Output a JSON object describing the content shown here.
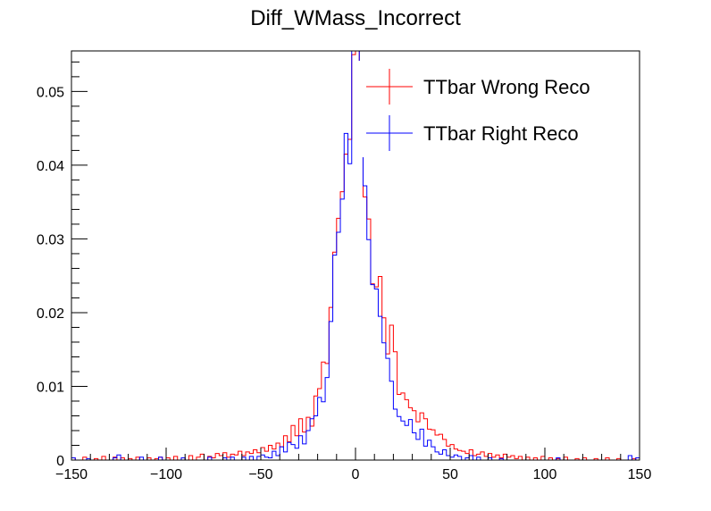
{
  "chart_data": {
    "type": "histogram-step",
    "title": "Diff_WMass_Incorrect",
    "xlabel": "",
    "ylabel": "",
    "xlim": [
      -150,
      150
    ],
    "ylim": [
      0,
      0.0555
    ],
    "x_ticks": [
      -150,
      -100,
      -50,
      0,
      50,
      100,
      150
    ],
    "x_tick_labels": [
      "−150",
      "−100",
      "−50",
      "0",
      "50",
      "100",
      "150"
    ],
    "y_ticks": [
      0,
      0.01,
      0.02,
      0.03,
      0.04,
      0.05
    ],
    "y_tick_labels": [
      "0",
      "0.01",
      "0.02",
      "0.03",
      "0.04",
      "0.05"
    ],
    "bin_width": 2,
    "legend_position": "top-right",
    "series": [
      {
        "name": "TTbar Wrong Reco",
        "color": "#ff0000",
        "bins": [
          [
            -150,
            0.0003
          ],
          [
            -148,
            0
          ],
          [
            -146,
            0
          ],
          [
            -144,
            0.0004
          ],
          [
            -142,
            0
          ],
          [
            -140,
            0
          ],
          [
            -138,
            0.0002
          ],
          [
            -136,
            0
          ],
          [
            -134,
            0.0005
          ],
          [
            -132,
            0
          ],
          [
            -130,
            0
          ],
          [
            -128,
            0.0004
          ],
          [
            -126,
            0
          ],
          [
            -124,
            0.0003
          ],
          [
            -122,
            0
          ],
          [
            -120,
            0.0002
          ],
          [
            -118,
            0
          ],
          [
            -116,
            0.0004
          ],
          [
            -114,
            0
          ],
          [
            -112,
            0
          ],
          [
            -110,
            0.0003
          ],
          [
            -108,
            0
          ],
          [
            -106,
            0.0002
          ],
          [
            -104,
            0.0004
          ],
          [
            -102,
            0
          ],
          [
            -100,
            0.0003
          ],
          [
            -98,
            0
          ],
          [
            -96,
            0.0005
          ],
          [
            -94,
            0
          ],
          [
            -92,
            0.0003
          ],
          [
            -90,
            0
          ],
          [
            -88,
            0.0006
          ],
          [
            -86,
            0
          ],
          [
            -84,
            0.0004
          ],
          [
            -82,
            0.0008
          ],
          [
            -80,
            0
          ],
          [
            -78,
            0.0005
          ],
          [
            -76,
            0.0003
          ],
          [
            -74,
            0.0009
          ],
          [
            -72,
            0.0006
          ],
          [
            -70,
            0.001
          ],
          [
            -68,
            0.0004
          ],
          [
            -66,
            0.0008
          ],
          [
            -64,
            0.0007
          ],
          [
            -62,
            0.0012
          ],
          [
            -60,
            0.0006
          ],
          [
            -58,
            0.0011
          ],
          [
            -56,
            0.0009
          ],
          [
            -54,
            0.0014
          ],
          [
            -52,
            0.001
          ],
          [
            -50,
            0.0017
          ],
          [
            -48,
            0.0012
          ],
          [
            -46,
            0.002
          ],
          [
            -44,
            0.0015
          ],
          [
            -42,
            0.0023
          ],
          [
            -40,
            0.0018
          ],
          [
            -38,
            0.0033
          ],
          [
            -36,
            0.0025
          ],
          [
            -34,
            0.0047
          ],
          [
            -32,
            0.0033
          ],
          [
            -30,
            0.0056
          ],
          [
            -28,
            0.0038
          ],
          [
            -26,
            0.0058
          ],
          [
            -24,
            0.0046
          ],
          [
            -22,
            0.0087
          ],
          [
            -20,
            0.0097
          ],
          [
            -18,
            0.0133
          ],
          [
            -16,
            0.0131
          ],
          [
            -14,
            0.0207
          ],
          [
            -12,
            0.0282
          ],
          [
            -10,
            0.0328
          ],
          [
            -8,
            0.0364
          ],
          [
            -6,
            0.0415
          ],
          [
            -4,
            0.0435
          ],
          [
            -2,
            0.055
          ],
          [
            0,
            0.0555
          ],
          [
            2,
            0.0488
          ],
          [
            4,
            0.0357
          ],
          [
            6,
            0.0327
          ],
          [
            8,
            0.0239
          ],
          [
            10,
            0.0235
          ],
          [
            12,
            0.0249
          ],
          [
            14,
            0.0193
          ],
          [
            16,
            0.0144
          ],
          [
            18,
            0.0183
          ],
          [
            20,
            0.0147
          ],
          [
            22,
            0.0089
          ],
          [
            24,
            0.0091
          ],
          [
            26,
            0.0082
          ],
          [
            28,
            0.0071
          ],
          [
            30,
            0.0067
          ],
          [
            32,
            0.0052
          ],
          [
            34,
            0.0064
          ],
          [
            36,
            0.0056
          ],
          [
            38,
            0.0042
          ],
          [
            40,
            0.0041
          ],
          [
            42,
            0.0034
          ],
          [
            44,
            0.0035
          ],
          [
            46,
            0.0028
          ],
          [
            48,
            0.0019
          ],
          [
            50,
            0.0021
          ],
          [
            52,
            0.0015
          ],
          [
            54,
            0.0013
          ],
          [
            56,
            0.0012
          ],
          [
            58,
            0.0009
          ],
          [
            60,
            0.0014
          ],
          [
            62,
            0.0006
          ],
          [
            64,
            0.0008
          ],
          [
            66,
            0.0011
          ],
          [
            68,
            0.0005
          ],
          [
            70,
            0.0009
          ],
          [
            72,
            0.0004
          ],
          [
            74,
            0.0007
          ],
          [
            76,
            0.0003
          ],
          [
            78,
            0.0008
          ],
          [
            80,
            0.0004
          ],
          [
            82,
            0.0006
          ],
          [
            84,
            0.0002
          ],
          [
            86,
            0.0005
          ],
          [
            88,
            0
          ],
          [
            90,
            0.0004
          ],
          [
            92,
            0
          ],
          [
            94,
            0.0003
          ],
          [
            96,
            0
          ],
          [
            98,
            0.0005
          ],
          [
            100,
            0
          ],
          [
            102,
            0.0003
          ],
          [
            104,
            0
          ],
          [
            106,
            0.0002
          ],
          [
            108,
            0
          ],
          [
            110,
            0.0004
          ],
          [
            112,
            0
          ],
          [
            114,
            0
          ],
          [
            116,
            0.0002
          ],
          [
            118,
            0
          ],
          [
            120,
            0.0003
          ],
          [
            122,
            0
          ],
          [
            124,
            0
          ],
          [
            126,
            0.0002
          ],
          [
            128,
            0
          ],
          [
            130,
            0
          ],
          [
            132,
            0.0003
          ],
          [
            134,
            0
          ],
          [
            136,
            0
          ],
          [
            138,
            0.0002
          ],
          [
            140,
            0
          ],
          [
            142,
            0
          ],
          [
            144,
            0
          ],
          [
            146,
            0.0002
          ],
          [
            148,
            0
          ]
        ]
      },
      {
        "name": "TTbar Right Reco",
        "color": "#0000ff",
        "bins": [
          [
            -150,
            0.0003
          ],
          [
            -148,
            0
          ],
          [
            -146,
            0
          ],
          [
            -144,
            0
          ],
          [
            -142,
            0.0002
          ],
          [
            -140,
            0
          ],
          [
            -138,
            0
          ],
          [
            -136,
            0
          ],
          [
            -134,
            0
          ],
          [
            -132,
            0
          ],
          [
            -130,
            0
          ],
          [
            -128,
            0.0003
          ],
          [
            -126,
            0.0007
          ],
          [
            -124,
            0
          ],
          [
            -122,
            0
          ],
          [
            -120,
            0
          ],
          [
            -118,
            0
          ],
          [
            -116,
            0
          ],
          [
            -114,
            0.0004
          ],
          [
            -112,
            0
          ],
          [
            -110,
            0
          ],
          [
            -108,
            0
          ],
          [
            -106,
            0
          ],
          [
            -104,
            0.0004
          ],
          [
            -102,
            0
          ],
          [
            -100,
            0
          ],
          [
            -98,
            0
          ],
          [
            -96,
            0
          ],
          [
            -94,
            0
          ],
          [
            -92,
            0.0003
          ],
          [
            -90,
            0
          ],
          [
            -88,
            0
          ],
          [
            -86,
            0
          ],
          [
            -84,
            0
          ],
          [
            -82,
            0
          ],
          [
            -80,
            0
          ],
          [
            -78,
            0.0004
          ],
          [
            -76,
            0
          ],
          [
            -74,
            0
          ],
          [
            -72,
            0
          ],
          [
            -70,
            0.0003
          ],
          [
            -68,
            0
          ],
          [
            -66,
            0.0004
          ],
          [
            -64,
            0
          ],
          [
            -62,
            0
          ],
          [
            -60,
            0.0004
          ],
          [
            -58,
            0
          ],
          [
            -56,
            0.0005
          ],
          [
            -54,
            0
          ],
          [
            -52,
            0.0005
          ],
          [
            -50,
            0.0007
          ],
          [
            -48,
            0.0004
          ],
          [
            -46,
            0.0003
          ],
          [
            -44,
            0.0012
          ],
          [
            -42,
            0.0006
          ],
          [
            -40,
            0.0018
          ],
          [
            -38,
            0.0011
          ],
          [
            -36,
            0.0024
          ],
          [
            -34,
            0.0021
          ],
          [
            -32,
            0.0016
          ],
          [
            -30,
            0.0033
          ],
          [
            -28,
            0.0022
          ],
          [
            -26,
            0.004
          ],
          [
            -24,
            0.0056
          ],
          [
            -22,
            0.006
          ],
          [
            -20,
            0.0085
          ],
          [
            -18,
            0.0079
          ],
          [
            -16,
            0.0112
          ],
          [
            -14,
            0.0188
          ],
          [
            -12,
            0.0278
          ],
          [
            -10,
            0.0309
          ],
          [
            -8,
            0.0354
          ],
          [
            -6,
            0.0443
          ],
          [
            -4,
            0.0402
          ],
          [
            -2,
            0.0555
          ],
          [
            0,
            0.0555
          ],
          [
            2,
            0.0415
          ],
          [
            4,
            0.0372
          ],
          [
            6,
            0.0299
          ],
          [
            8,
            0.0238
          ],
          [
            10,
            0.0232
          ],
          [
            12,
            0.0195
          ],
          [
            14,
            0.0159
          ],
          [
            16,
            0.0138
          ],
          [
            18,
            0.0107
          ],
          [
            20,
            0.0069
          ],
          [
            22,
            0.0059
          ],
          [
            24,
            0.0053
          ],
          [
            26,
            0.0047
          ],
          [
            28,
            0.0055
          ],
          [
            30,
            0.0037
          ],
          [
            32,
            0.0028
          ],
          [
            34,
            0.0042
          ],
          [
            36,
            0.0019
          ],
          [
            38,
            0.0027
          ],
          [
            40,
            0.0018
          ],
          [
            42,
            0.0011
          ],
          [
            44,
            0.0008
          ],
          [
            46,
            0.0014
          ],
          [
            48,
            0.0006
          ],
          [
            50,
            0.0004
          ],
          [
            52,
            0.0007
          ],
          [
            54,
            0.0005
          ],
          [
            56,
            0
          ],
          [
            58,
            0.0003
          ],
          [
            60,
            0.0006
          ],
          [
            62,
            0
          ],
          [
            64,
            0.0004
          ],
          [
            66,
            0
          ],
          [
            68,
            0
          ],
          [
            70,
            0.0003
          ],
          [
            72,
            0
          ],
          [
            74,
            0
          ],
          [
            76,
            0.0002
          ],
          [
            78,
            0
          ],
          [
            80,
            0
          ],
          [
            82,
            0
          ],
          [
            84,
            0
          ],
          [
            86,
            0
          ],
          [
            88,
            0
          ],
          [
            90,
            0
          ],
          [
            92,
            0
          ],
          [
            94,
            0
          ],
          [
            96,
            0
          ],
          [
            98,
            0
          ],
          [
            100,
            0
          ],
          [
            102,
            0
          ],
          [
            104,
            0
          ],
          [
            106,
            0.0003
          ],
          [
            108,
            0
          ],
          [
            110,
            0
          ],
          [
            112,
            0
          ],
          [
            114,
            0
          ],
          [
            116,
            0
          ],
          [
            118,
            0
          ],
          [
            120,
            0
          ],
          [
            122,
            0
          ],
          [
            124,
            0
          ],
          [
            126,
            0
          ],
          [
            128,
            0
          ],
          [
            130,
            0
          ],
          [
            132,
            0
          ],
          [
            134,
            0
          ],
          [
            136,
            0
          ],
          [
            138,
            0
          ],
          [
            140,
            0
          ],
          [
            142,
            0
          ],
          [
            144,
            0.0006
          ],
          [
            146,
            0
          ],
          [
            148,
            0.0003
          ]
        ]
      }
    ]
  }
}
